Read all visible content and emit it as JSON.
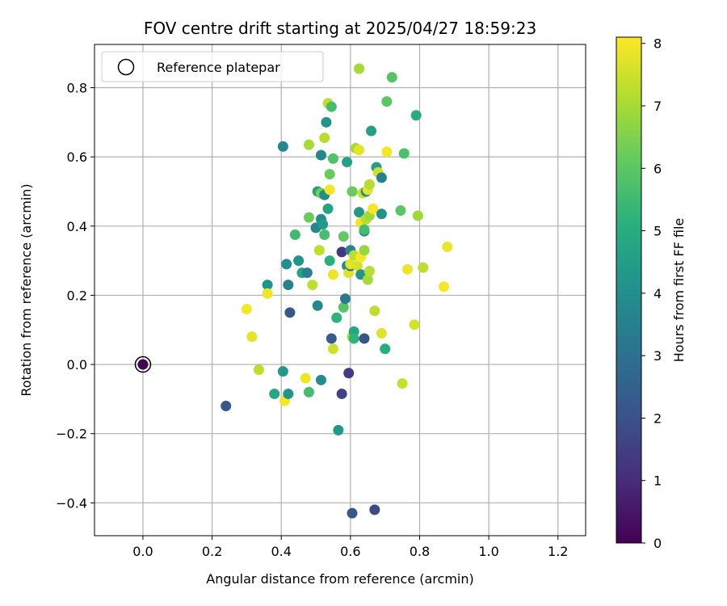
{
  "chart_data": {
    "type": "scatter",
    "title": "FOV centre drift starting at 2025/04/27 18:59:23",
    "xlabel": "Angular distance from reference (arcmin)",
    "ylabel": "Rotation from reference (arcmin)",
    "xlim": [
      -0.14,
      1.28
    ],
    "ylim": [
      -0.495,
      0.925
    ],
    "xticks": [
      0.0,
      0.2,
      0.4,
      0.6,
      0.8,
      1.0,
      1.2
    ],
    "xtick_labels": [
      "0.0",
      "0.2",
      "0.4",
      "0.6",
      "0.8",
      "1.0",
      "1.2"
    ],
    "yticks": [
      -0.4,
      -0.2,
      0.0,
      0.2,
      0.4,
      0.6,
      0.8
    ],
    "ytick_labels": [
      "−0.4",
      "−0.2",
      "0.0",
      "0.2",
      "0.4",
      "0.6",
      "0.8"
    ],
    "grid": true,
    "legend": {
      "position": "top-left",
      "entries": [
        "Reference platepar"
      ]
    },
    "colorbar": {
      "label": "Hours from first FF file",
      "colormap": "viridis",
      "range": [
        0,
        8.1
      ],
      "ticks": [
        0,
        1,
        2,
        3,
        4,
        5,
        6,
        7,
        8
      ],
      "tick_labels": [
        "0",
        "1",
        "2",
        "3",
        "4",
        "5",
        "6",
        "7",
        "8"
      ]
    },
    "reference": {
      "x": 0.0,
      "y": 0.0,
      "hours": 0.0
    },
    "points": [
      {
        "x": 0.24,
        "y": -0.12,
        "hours": 2.2
      },
      {
        "x": 0.3,
        "y": 0.16,
        "hours": 8.0
      },
      {
        "x": 0.315,
        "y": 0.08,
        "hours": 7.8
      },
      {
        "x": 0.335,
        "y": -0.015,
        "hours": 7.3
      },
      {
        "x": 0.36,
        "y": 0.23,
        "hours": 4.2
      },
      {
        "x": 0.36,
        "y": 0.205,
        "hours": 7.9
      },
      {
        "x": 0.38,
        "y": -0.085,
        "hours": 4.8
      },
      {
        "x": 0.405,
        "y": 0.63,
        "hours": 3.7
      },
      {
        "x": 0.405,
        "y": -0.02,
        "hours": 4.3
      },
      {
        "x": 0.41,
        "y": -0.105,
        "hours": 8.0
      },
      {
        "x": 0.415,
        "y": 0.29,
        "hours": 4.0
      },
      {
        "x": 0.42,
        "y": 0.23,
        "hours": 3.6
      },
      {
        "x": 0.42,
        "y": -0.085,
        "hours": 4.2
      },
      {
        "x": 0.425,
        "y": 0.15,
        "hours": 2.2
      },
      {
        "x": 0.44,
        "y": 0.375,
        "hours": 5.5
      },
      {
        "x": 0.45,
        "y": 0.3,
        "hours": 4.2
      },
      {
        "x": 0.46,
        "y": 0.265,
        "hours": 4.6
      },
      {
        "x": 0.47,
        "y": -0.04,
        "hours": 7.9
      },
      {
        "x": 0.475,
        "y": 0.265,
        "hours": 3.5
      },
      {
        "x": 0.48,
        "y": 0.635,
        "hours": 7.0
      },
      {
        "x": 0.48,
        "y": 0.425,
        "hours": 6.2
      },
      {
        "x": 0.48,
        "y": -0.08,
        "hours": 5.6
      },
      {
        "x": 0.49,
        "y": 0.23,
        "hours": 7.3
      },
      {
        "x": 0.5,
        "y": 0.395,
        "hours": 3.7
      },
      {
        "x": 0.505,
        "y": 0.5,
        "hours": 4.7
      },
      {
        "x": 0.505,
        "y": 0.17,
        "hours": 3.8
      },
      {
        "x": 0.51,
        "y": 0.33,
        "hours": 7.3
      },
      {
        "x": 0.515,
        "y": 0.42,
        "hours": 3.9
      },
      {
        "x": 0.515,
        "y": 0.495,
        "hours": 6.4
      },
      {
        "x": 0.515,
        "y": -0.045,
        "hours": 3.9
      },
      {
        "x": 0.515,
        "y": 0.605,
        "hours": 3.8
      },
      {
        "x": 0.52,
        "y": 0.405,
        "hours": 4.4
      },
      {
        "x": 0.525,
        "y": 0.655,
        "hours": 7.2
      },
      {
        "x": 0.525,
        "y": 0.49,
        "hours": 3.9
      },
      {
        "x": 0.525,
        "y": 0.375,
        "hours": 5.6
      },
      {
        "x": 0.53,
        "y": 0.7,
        "hours": 4.2
      },
      {
        "x": 0.535,
        "y": 0.45,
        "hours": 4.7
      },
      {
        "x": 0.535,
        "y": 0.755,
        "hours": 7.3
      },
      {
        "x": 0.54,
        "y": 0.3,
        "hours": 5.1
      },
      {
        "x": 0.54,
        "y": 0.55,
        "hours": 6.2
      },
      {
        "x": 0.54,
        "y": 0.505,
        "hours": 8.0
      },
      {
        "x": 0.545,
        "y": 0.075,
        "hours": 2.3
      },
      {
        "x": 0.545,
        "y": 0.745,
        "hours": 5.6
      },
      {
        "x": 0.55,
        "y": 0.26,
        "hours": 7.9
      },
      {
        "x": 0.55,
        "y": 0.595,
        "hours": 5.8
      },
      {
        "x": 0.55,
        "y": 0.045,
        "hours": 7.5
      },
      {
        "x": 0.56,
        "y": 0.135,
        "hours": 5.2
      },
      {
        "x": 0.565,
        "y": -0.19,
        "hours": 4.3
      },
      {
        "x": 0.575,
        "y": 0.325,
        "hours": 1.3
      },
      {
        "x": 0.575,
        "y": -0.085,
        "hours": 1.6
      },
      {
        "x": 0.58,
        "y": 0.37,
        "hours": 6.1
      },
      {
        "x": 0.58,
        "y": 0.165,
        "hours": 5.9
      },
      {
        "x": 0.585,
        "y": 0.19,
        "hours": 3.3
      },
      {
        "x": 0.59,
        "y": 0.585,
        "hours": 4.6
      },
      {
        "x": 0.59,
        "y": 0.285,
        "hours": 4.0
      },
      {
        "x": 0.595,
        "y": 0.265,
        "hours": 7.7
      },
      {
        "x": 0.595,
        "y": -0.025,
        "hours": 1.4
      },
      {
        "x": 0.6,
        "y": 0.33,
        "hours": 3.7
      },
      {
        "x": 0.6,
        "y": 0.285,
        "hours": 3.0
      },
      {
        "x": 0.6,
        "y": 0.29,
        "hours": 7.8
      },
      {
        "x": 0.605,
        "y": -0.43,
        "hours": 2.2
      },
      {
        "x": 0.605,
        "y": 0.08,
        "hours": 7.1
      },
      {
        "x": 0.605,
        "y": 0.5,
        "hours": 6.2
      },
      {
        "x": 0.61,
        "y": 0.095,
        "hours": 4.8
      },
      {
        "x": 0.61,
        "y": 0.315,
        "hours": 7.3
      },
      {
        "x": 0.61,
        "y": 0.075,
        "hours": 5.2
      },
      {
        "x": 0.615,
        "y": 0.625,
        "hours": 7.0
      },
      {
        "x": 0.62,
        "y": 0.285,
        "hours": 7.6
      },
      {
        "x": 0.625,
        "y": 0.855,
        "hours": 7.0
      },
      {
        "x": 0.625,
        "y": 0.44,
        "hours": 4.3
      },
      {
        "x": 0.625,
        "y": 0.62,
        "hours": 7.8
      },
      {
        "x": 0.63,
        "y": 0.26,
        "hours": 4.2
      },
      {
        "x": 0.63,
        "y": 0.41,
        "hours": 7.9
      },
      {
        "x": 0.63,
        "y": 0.31,
        "hours": 8.0
      },
      {
        "x": 0.635,
        "y": 0.495,
        "hours": 7.5
      },
      {
        "x": 0.64,
        "y": 0.385,
        "hours": 4.0
      },
      {
        "x": 0.64,
        "y": 0.33,
        "hours": 6.8
      },
      {
        "x": 0.64,
        "y": 0.39,
        "hours": 5.6
      },
      {
        "x": 0.64,
        "y": 0.075,
        "hours": 2.1
      },
      {
        "x": 0.645,
        "y": 0.42,
        "hours": 7.2
      },
      {
        "x": 0.645,
        "y": 0.5,
        "hours": 3.9
      },
      {
        "x": 0.65,
        "y": 0.245,
        "hours": 7.0
      },
      {
        "x": 0.65,
        "y": 0.505,
        "hours": 7.8
      },
      {
        "x": 0.655,
        "y": 0.52,
        "hours": 7.2
      },
      {
        "x": 0.655,
        "y": 0.27,
        "hours": 7.2
      },
      {
        "x": 0.655,
        "y": 0.43,
        "hours": 6.9
      },
      {
        "x": 0.66,
        "y": 0.675,
        "hours": 4.5
      },
      {
        "x": 0.665,
        "y": 0.45,
        "hours": 8.0
      },
      {
        "x": 0.67,
        "y": -0.42,
        "hours": 1.8
      },
      {
        "x": 0.67,
        "y": 0.155,
        "hours": 7.3
      },
      {
        "x": 0.675,
        "y": 0.57,
        "hours": 4.5
      },
      {
        "x": 0.68,
        "y": 0.555,
        "hours": 7.5
      },
      {
        "x": 0.69,
        "y": 0.09,
        "hours": 7.7
      },
      {
        "x": 0.69,
        "y": 0.435,
        "hours": 4.1
      },
      {
        "x": 0.69,
        "y": 0.54,
        "hours": 3.5
      },
      {
        "x": 0.7,
        "y": 0.045,
        "hours": 5.0
      },
      {
        "x": 0.705,
        "y": 0.615,
        "hours": 8.0
      },
      {
        "x": 0.705,
        "y": 0.76,
        "hours": 6.0
      },
      {
        "x": 0.72,
        "y": 0.83,
        "hours": 5.9
      },
      {
        "x": 0.745,
        "y": 0.445,
        "hours": 6.0
      },
      {
        "x": 0.75,
        "y": -0.055,
        "hours": 7.4
      },
      {
        "x": 0.755,
        "y": 0.61,
        "hours": 5.7
      },
      {
        "x": 0.765,
        "y": 0.275,
        "hours": 7.9
      },
      {
        "x": 0.785,
        "y": 0.115,
        "hours": 7.6
      },
      {
        "x": 0.79,
        "y": 0.72,
        "hours": 5.0
      },
      {
        "x": 0.795,
        "y": 0.43,
        "hours": 6.9
      },
      {
        "x": 0.81,
        "y": 0.28,
        "hours": 7.3
      },
      {
        "x": 0.87,
        "y": 0.225,
        "hours": 8.0
      },
      {
        "x": 0.88,
        "y": 0.34,
        "hours": 7.9
      }
    ]
  }
}
